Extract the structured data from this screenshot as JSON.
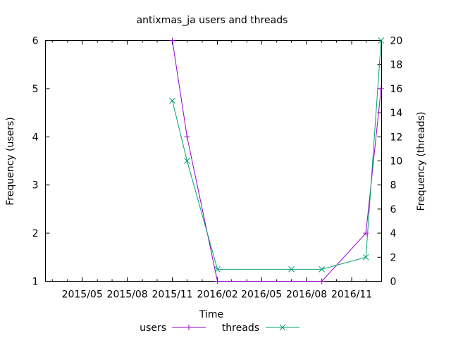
{
  "chart_data": {
    "type": "line",
    "title": "antixmas_ja users and threads",
    "xlabel": "Time",
    "ylabel": "Frequency (users)",
    "y2label": "Frequency (threads)",
    "x_ticks": [
      "2015/05",
      "2015/08",
      "2015/11",
      "2016/02",
      "2016/05",
      "2016/08",
      "2016/11"
    ],
    "x_range": [
      "2015-02-15",
      "2017-01-01"
    ],
    "ylim": [
      1,
      6
    ],
    "y2lim": [
      0,
      20
    ],
    "y_ticks": [
      1,
      2,
      3,
      4,
      5,
      6
    ],
    "y2_ticks": [
      0,
      2,
      4,
      6,
      8,
      10,
      12,
      14,
      16,
      18,
      20
    ],
    "legend_position": "bottom",
    "grid": false,
    "series": [
      {
        "name": "users",
        "axis": "left",
        "color": "#9400d3",
        "marker": "plus",
        "x": [
          "2015-11-01",
          "2015-12-01",
          "2016-02-01",
          "2016-09-01",
          "2016-11-30",
          "2016-12-31"
        ],
        "values": [
          6,
          4,
          1,
          1,
          2,
          5
        ]
      },
      {
        "name": "threads",
        "axis": "right",
        "color": "#009e73",
        "marker": "x",
        "x": [
          "2015-11-01",
          "2015-12-01",
          "2016-02-01",
          "2016-07-01",
          "2016-09-01",
          "2016-11-30",
          "2016-12-31"
        ],
        "values": [
          15,
          10,
          1,
          1,
          1,
          2,
          20
        ]
      }
    ]
  }
}
